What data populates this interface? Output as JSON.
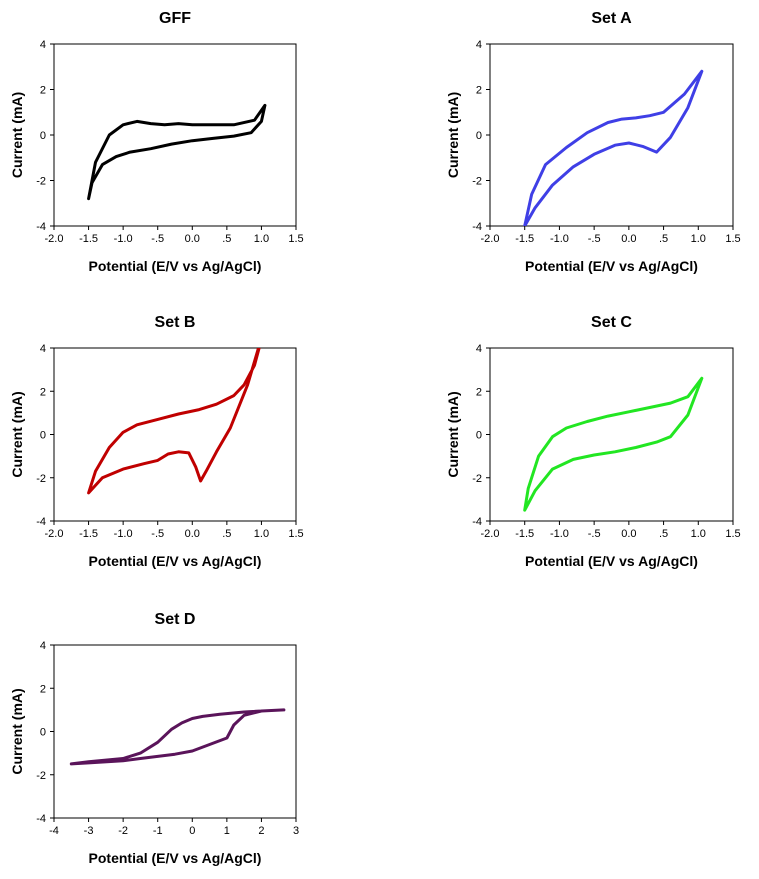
{
  "chart_data": [
    {
      "type": "line",
      "title": "GFF",
      "xlabel": "Potential (E/V vs Ag/AgCl)",
      "ylabel": "Current (mA)",
      "xlim": [
        -2.0,
        1.5
      ],
      "ylim": [
        -4,
        4
      ],
      "xticks": [
        "-2.0",
        "-1.5",
        "-1.0",
        "-.5",
        "0.0",
        ".5",
        "1.0",
        "1.5"
      ],
      "yticks": [
        "-4",
        "-2",
        "0",
        "2",
        "4"
      ],
      "grid": false,
      "series": [
        {
          "color": "#000000",
          "x": [
            1.05,
            0.9,
            0.6,
            0.2,
            0.0,
            -0.2,
            -0.4,
            -0.6,
            -0.8,
            -1.0,
            -1.2,
            -1.4,
            -1.5,
            -1.45,
            -1.3,
            -1.1,
            -0.9,
            -0.6,
            -0.3,
            0.0,
            0.3,
            0.6,
            0.85,
            1.0,
            1.05
          ],
          "y": [
            1.3,
            0.65,
            0.45,
            0.45,
            0.45,
            0.5,
            0.45,
            0.5,
            0.6,
            0.45,
            0.0,
            -1.2,
            -2.8,
            -2.1,
            -1.3,
            -0.95,
            -0.75,
            -0.6,
            -0.4,
            -0.25,
            -0.15,
            -0.05,
            0.1,
            0.6,
            1.3
          ]
        }
      ]
    },
    {
      "type": "line",
      "title": "Set A",
      "xlabel": "Potential (E/V vs Ag/AgCl)",
      "ylabel": "Current (mA)",
      "xlim": [
        -2.0,
        1.5
      ],
      "ylim": [
        -4,
        4
      ],
      "xticks": [
        "-2.0",
        "-1.5",
        "-1.0",
        "-.5",
        "0.0",
        ".5",
        "1.0",
        "1.5"
      ],
      "yticks": [
        "-4",
        "-2",
        "0",
        "2",
        "4"
      ],
      "grid": false,
      "series": [
        {
          "color": "#3f3fe6",
          "x": [
            1.05,
            0.8,
            0.5,
            0.3,
            0.1,
            -0.1,
            -0.3,
            -0.6,
            -0.9,
            -1.2,
            -1.4,
            -1.5,
            -1.35,
            -1.1,
            -0.8,
            -0.5,
            -0.2,
            0.0,
            0.2,
            0.4,
            0.6,
            0.85,
            1.05
          ],
          "y": [
            2.8,
            1.8,
            1.0,
            0.85,
            0.75,
            0.7,
            0.55,
            0.1,
            -0.55,
            -1.3,
            -2.6,
            -4.0,
            -3.2,
            -2.2,
            -1.4,
            -0.85,
            -0.45,
            -0.35,
            -0.5,
            -0.75,
            -0.1,
            1.2,
            2.8
          ]
        }
      ]
    },
    {
      "type": "line",
      "title": "Set B",
      "xlabel": "Potential (E/V vs Ag/AgCl)",
      "ylabel": "Current (mA)",
      "xlim": [
        -2.0,
        1.5
      ],
      "ylim": [
        -4,
        4
      ],
      "xticks": [
        "-2.0",
        "-1.5",
        "-1.0",
        "-.5",
        "0.0",
        ".5",
        "1.0",
        "1.5"
      ],
      "yticks": [
        "-4",
        "-2",
        "0",
        "2",
        "4"
      ],
      "grid": false,
      "series": [
        {
          "color": "#c00000",
          "x": [
            1.05,
            0.9,
            0.75,
            0.6,
            0.35,
            0.1,
            -0.2,
            -0.5,
            -0.8,
            -1.0,
            -1.2,
            -1.4,
            -1.5,
            -1.3,
            -1.0,
            -0.7,
            -0.5,
            -0.35,
            -0.2,
            -0.05,
            0.05,
            0.12,
            0.2,
            0.35,
            0.55,
            0.8,
            1.05
          ],
          "y": [
            5.0,
            3.2,
            2.3,
            1.8,
            1.4,
            1.15,
            0.95,
            0.7,
            0.45,
            0.1,
            -0.6,
            -1.7,
            -2.7,
            -2.0,
            -1.6,
            -1.35,
            -1.2,
            -0.9,
            -0.8,
            -0.85,
            -1.5,
            -2.15,
            -1.7,
            -0.8,
            0.3,
            2.3,
            5.0
          ]
        }
      ]
    },
    {
      "type": "line",
      "title": "Set C",
      "xlabel": "Potential (E/V vs Ag/AgCl)",
      "ylabel": "Current (mA)",
      "xlim": [
        -2.0,
        1.5
      ],
      "ylim": [
        -4,
        4
      ],
      "xticks": [
        "-2.0",
        "-1.5",
        "-1.0",
        "-.5",
        "0.0",
        ".5",
        "1.0",
        "1.5"
      ],
      "yticks": [
        "-4",
        "-2",
        "0",
        "2",
        "4"
      ],
      "grid": false,
      "series": [
        {
          "color": "#22e622",
          "x": [
            1.05,
            0.85,
            0.6,
            0.3,
            0.0,
            -0.3,
            -0.6,
            -0.9,
            -1.1,
            -1.3,
            -1.45,
            -1.5,
            -1.35,
            -1.1,
            -0.8,
            -0.5,
            -0.2,
            0.1,
            0.4,
            0.6,
            0.85,
            1.05
          ],
          "y": [
            2.6,
            1.75,
            1.45,
            1.25,
            1.05,
            0.85,
            0.6,
            0.3,
            -0.1,
            -1.0,
            -2.5,
            -3.5,
            -2.6,
            -1.6,
            -1.15,
            -0.95,
            -0.8,
            -0.6,
            -0.35,
            -0.1,
            0.9,
            2.6
          ]
        }
      ]
    },
    {
      "type": "line",
      "title": "Set D",
      "xlabel": "Potential (E/V vs Ag/AgCl)",
      "ylabel": "Current (mA)",
      "xlim": [
        -4,
        3
      ],
      "ylim": [
        -4,
        4
      ],
      "xticks": [
        "-4",
        "-3",
        "-2",
        "-1",
        "0",
        "1",
        "2",
        "3"
      ],
      "yticks": [
        "-4",
        "-2",
        "0",
        "2",
        "4"
      ],
      "grid": false,
      "series": [
        {
          "color": "#5a145a",
          "x": [
            2.65,
            2.0,
            1.5,
            1.2,
            1.0,
            0.5,
            0.0,
            -0.5,
            -1.0,
            -1.5,
            -2.0,
            -3.0,
            -3.5,
            -3.0,
            -2.0,
            -1.5,
            -1.0,
            -0.6,
            -0.3,
            0.0,
            0.3,
            0.8,
            1.5,
            2.0,
            2.65
          ],
          "y": [
            1.0,
            0.95,
            0.75,
            0.3,
            -0.3,
            -0.6,
            -0.9,
            -1.05,
            -1.15,
            -1.25,
            -1.35,
            -1.45,
            -1.5,
            -1.4,
            -1.25,
            -1.0,
            -0.5,
            0.1,
            0.4,
            0.6,
            0.7,
            0.8,
            0.9,
            0.95,
            1.0
          ]
        }
      ]
    }
  ]
}
